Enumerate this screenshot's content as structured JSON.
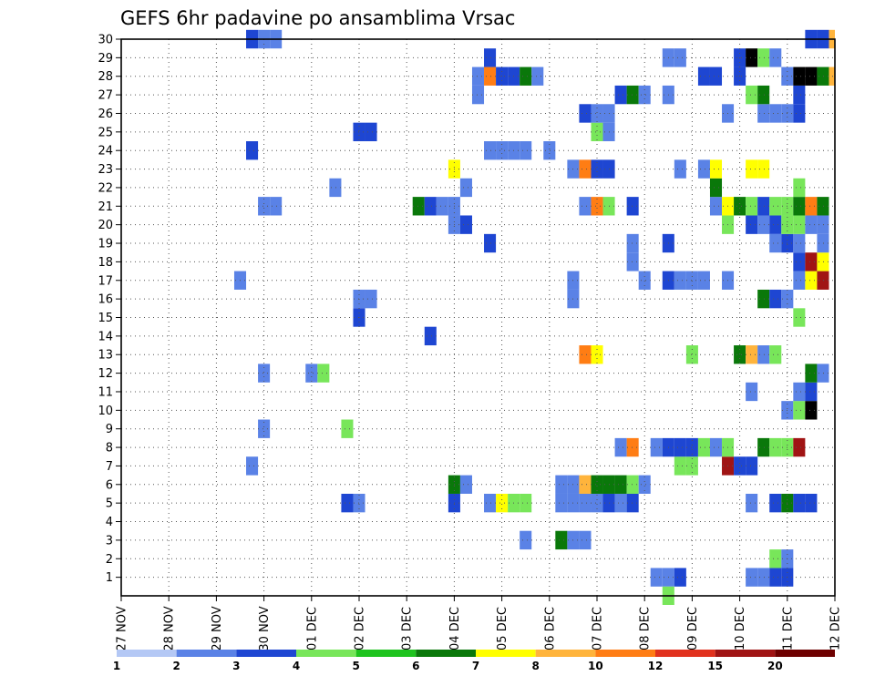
{
  "chart_data": {
    "type": "heatmap",
    "title": "GEFS 6hr padavine po ansamblima Vrsac",
    "y_ticks": [
      "1",
      "2",
      "3",
      "4",
      "5",
      "6",
      "7",
      "8",
      "9",
      "10",
      "11",
      "12",
      "13",
      "14",
      "15",
      "16",
      "17",
      "18",
      "19",
      "20",
      "21",
      "22",
      "23",
      "24",
      "25",
      "26",
      "27",
      "28",
      "29",
      "30"
    ],
    "y_range": [
      0,
      30
    ],
    "x_ticks": [
      "27 NOV",
      "28 NOV",
      "29 NOV",
      "30 NOV",
      "01 DEC",
      "02 DEC",
      "03 DEC",
      "04 DEC",
      "05 DEC",
      "06 DEC",
      "07 DEC",
      "08 DEC",
      "09 DEC",
      "10 DEC",
      "11 DEC",
      "12 DEC"
    ],
    "x_range_steps": [
      0,
      60
    ],
    "steps_per_day": 4,
    "grid": true,
    "legend_placement": "bottom",
    "legend_labels": [
      "1",
      "2",
      "3",
      "4",
      "5",
      "6",
      "7",
      "8",
      "10",
      "12",
      "15",
      "20"
    ],
    "legend_colors": [
      "#b4c8f5",
      "#5a82e6",
      "#1e46d2",
      "#78e65a",
      "#1ec31e",
      "#0a780a",
      "#ffff00",
      "#ffb43c",
      "#ff7d14",
      "#e1321e",
      "#a01414",
      "#6e0000"
    ],
    "cells": [
      [
        1,
        45,
        1
      ],
      [
        1,
        46,
        1
      ],
      [
        1,
        47,
        2
      ],
      [
        1,
        53,
        1
      ],
      [
        1,
        54,
        1
      ],
      [
        1,
        55,
        2
      ],
      [
        1,
        56,
        2
      ],
      [
        0,
        46,
        3
      ],
      [
        2,
        55,
        3
      ],
      [
        2,
        56,
        1
      ],
      [
        3,
        34,
        1
      ],
      [
        3,
        37,
        5
      ],
      [
        3,
        38,
        1
      ],
      [
        3,
        39,
        1
      ],
      [
        5,
        19,
        2
      ],
      [
        5,
        20,
        1
      ],
      [
        5,
        28,
        2
      ],
      [
        5,
        31,
        1
      ],
      [
        5,
        32,
        6
      ],
      [
        5,
        33,
        3
      ],
      [
        5,
        34,
        3
      ],
      [
        5,
        37,
        1
      ],
      [
        5,
        38,
        1
      ],
      [
        5,
        39,
        1
      ],
      [
        5,
        40,
        1
      ],
      [
        5,
        41,
        2
      ],
      [
        5,
        42,
        1
      ],
      [
        5,
        43,
        2
      ],
      [
        5,
        53,
        1
      ],
      [
        5,
        55,
        2
      ],
      [
        5,
        56,
        5
      ],
      [
        5,
        57,
        2
      ],
      [
        5,
        58,
        2
      ],
      [
        6,
        28,
        5
      ],
      [
        6,
        29,
        1
      ],
      [
        6,
        37,
        1
      ],
      [
        6,
        38,
        1
      ],
      [
        6,
        39,
        7
      ],
      [
        6,
        40,
        5
      ],
      [
        6,
        41,
        5
      ],
      [
        6,
        42,
        5
      ],
      [
        6,
        43,
        3
      ],
      [
        6,
        44,
        1
      ],
      [
        7,
        11,
        1
      ],
      [
        7,
        47,
        3
      ],
      [
        7,
        48,
        3
      ],
      [
        7,
        51,
        10
      ],
      [
        7,
        52,
        2
      ],
      [
        7,
        53,
        2
      ],
      [
        8,
        42,
        1
      ],
      [
        8,
        43,
        8
      ],
      [
        8,
        45,
        1
      ],
      [
        8,
        46,
        2
      ],
      [
        8,
        47,
        2
      ],
      [
        8,
        48,
        2
      ],
      [
        8,
        49,
        3
      ],
      [
        8,
        50,
        1
      ],
      [
        8,
        51,
        3
      ],
      [
        8,
        54,
        5
      ],
      [
        8,
        55,
        3
      ],
      [
        8,
        56,
        3
      ],
      [
        8,
        57,
        10
      ],
      [
        9,
        12,
        1
      ],
      [
        9,
        19,
        3
      ],
      [
        10,
        56,
        1
      ],
      [
        10,
        57,
        3
      ],
      [
        10,
        58,
        15
      ],
      [
        11,
        53,
        1
      ],
      [
        11,
        57,
        1
      ],
      [
        11,
        58,
        2
      ],
      [
        12,
        12,
        1
      ],
      [
        12,
        16,
        1
      ],
      [
        12,
        17,
        3
      ],
      [
        12,
        58,
        5
      ],
      [
        12,
        59,
        1
      ],
      [
        13,
        39,
        8
      ],
      [
        13,
        40,
        6
      ],
      [
        13,
        48,
        3
      ],
      [
        13,
        52,
        5
      ],
      [
        13,
        53,
        7
      ],
      [
        13,
        54,
        1
      ],
      [
        13,
        55,
        3
      ],
      [
        14,
        26,
        2
      ],
      [
        15,
        20,
        2
      ],
      [
        15,
        57,
        3
      ],
      [
        16,
        20,
        1
      ],
      [
        16,
        21,
        1
      ],
      [
        16,
        38,
        1
      ],
      [
        16,
        54,
        5
      ],
      [
        16,
        55,
        2
      ],
      [
        16,
        56,
        1
      ],
      [
        17,
        10,
        1
      ],
      [
        17,
        38,
        1
      ],
      [
        17,
        44,
        1
      ],
      [
        17,
        46,
        2
      ],
      [
        17,
        47,
        1
      ],
      [
        17,
        48,
        1
      ],
      [
        17,
        49,
        1
      ],
      [
        17,
        51,
        1
      ],
      [
        17,
        57,
        1
      ],
      [
        17,
        58,
        6
      ],
      [
        17,
        59,
        10
      ],
      [
        18,
        43,
        1
      ],
      [
        18,
        57,
        2
      ],
      [
        18,
        58,
        10
      ],
      [
        18,
        59,
        6
      ],
      [
        19,
        31,
        2
      ],
      [
        19,
        43,
        1
      ],
      [
        19,
        46,
        2
      ],
      [
        19,
        55,
        1
      ],
      [
        19,
        56,
        2
      ],
      [
        19,
        57,
        1
      ],
      [
        19,
        59,
        1
      ],
      [
        20,
        28,
        1
      ],
      [
        20,
        29,
        2
      ],
      [
        20,
        51,
        3
      ],
      [
        20,
        53,
        2
      ],
      [
        20,
        54,
        1
      ],
      [
        20,
        55,
        2
      ],
      [
        20,
        56,
        3
      ],
      [
        20,
        57,
        3
      ],
      [
        20,
        58,
        1
      ],
      [
        20,
        59,
        1
      ],
      [
        21,
        12,
        1
      ],
      [
        21,
        13,
        1
      ],
      [
        21,
        25,
        5
      ],
      [
        21,
        26,
        2
      ],
      [
        21,
        27,
        1
      ],
      [
        21,
        28,
        1
      ],
      [
        21,
        39,
        1
      ],
      [
        21,
        40,
        8
      ],
      [
        21,
        41,
        3
      ],
      [
        21,
        43,
        2
      ],
      [
        21,
        50,
        1
      ],
      [
        21,
        51,
        6
      ],
      [
        21,
        52,
        5
      ],
      [
        21,
        53,
        3
      ],
      [
        21,
        54,
        2
      ],
      [
        21,
        55,
        3
      ],
      [
        21,
        56,
        3
      ],
      [
        21,
        57,
        5
      ],
      [
        21,
        58,
        8
      ],
      [
        21,
        59,
        5
      ],
      [
        22,
        18,
        1
      ],
      [
        22,
        29,
        1
      ],
      [
        22,
        50,
        5
      ],
      [
        22,
        57,
        3
      ],
      [
        23,
        28,
        6
      ],
      [
        23,
        38,
        1
      ],
      [
        23,
        39,
        8
      ],
      [
        23,
        40,
        2
      ],
      [
        23,
        41,
        2
      ],
      [
        23,
        47,
        1
      ],
      [
        23,
        49,
        1
      ],
      [
        23,
        50,
        6
      ],
      [
        23,
        53,
        6
      ],
      [
        23,
        54,
        6
      ],
      [
        24,
        11,
        2
      ],
      [
        24,
        31,
        1
      ],
      [
        24,
        32,
        1
      ],
      [
        24,
        33,
        1
      ],
      [
        24,
        34,
        1
      ],
      [
        24,
        36,
        1
      ],
      [
        25,
        20,
        2
      ],
      [
        25,
        21,
        2
      ],
      [
        25,
        40,
        3
      ],
      [
        25,
        41,
        1
      ],
      [
        26,
        39,
        2
      ],
      [
        26,
        40,
        1
      ],
      [
        26,
        41,
        1
      ],
      [
        26,
        51,
        1
      ],
      [
        26,
        54,
        1
      ],
      [
        26,
        55,
        1
      ],
      [
        26,
        56,
        1
      ],
      [
        26,
        57,
        2
      ],
      [
        27,
        30,
        1
      ],
      [
        27,
        42,
        2
      ],
      [
        27,
        43,
        5
      ],
      [
        27,
        44,
        1
      ],
      [
        27,
        46,
        1
      ],
      [
        27,
        53,
        3
      ],
      [
        27,
        54,
        5
      ],
      [
        27,
        57,
        2
      ],
      [
        28,
        30,
        1
      ],
      [
        28,
        31,
        8
      ],
      [
        28,
        32,
        2
      ],
      [
        28,
        33,
        2
      ],
      [
        28,
        34,
        5
      ],
      [
        28,
        35,
        1
      ],
      [
        28,
        49,
        2
      ],
      [
        28,
        50,
        2
      ],
      [
        28,
        52,
        2
      ],
      [
        28,
        56,
        1
      ],
      [
        28,
        57,
        15
      ],
      [
        28,
        58,
        15
      ],
      [
        28,
        59,
        5
      ],
      [
        28,
        60,
        7
      ],
      [
        29,
        31,
        2
      ],
      [
        29,
        46,
        1
      ],
      [
        29,
        47,
        1
      ],
      [
        29,
        52,
        2
      ],
      [
        29,
        53,
        15
      ],
      [
        29,
        54,
        3
      ],
      [
        29,
        55,
        1
      ],
      [
        30,
        11,
        2
      ],
      [
        30,
        12,
        1
      ],
      [
        30,
        13,
        1
      ],
      [
        30,
        58,
        2
      ],
      [
        30,
        59,
        2
      ],
      [
        30,
        60,
        7
      ]
    ]
  }
}
